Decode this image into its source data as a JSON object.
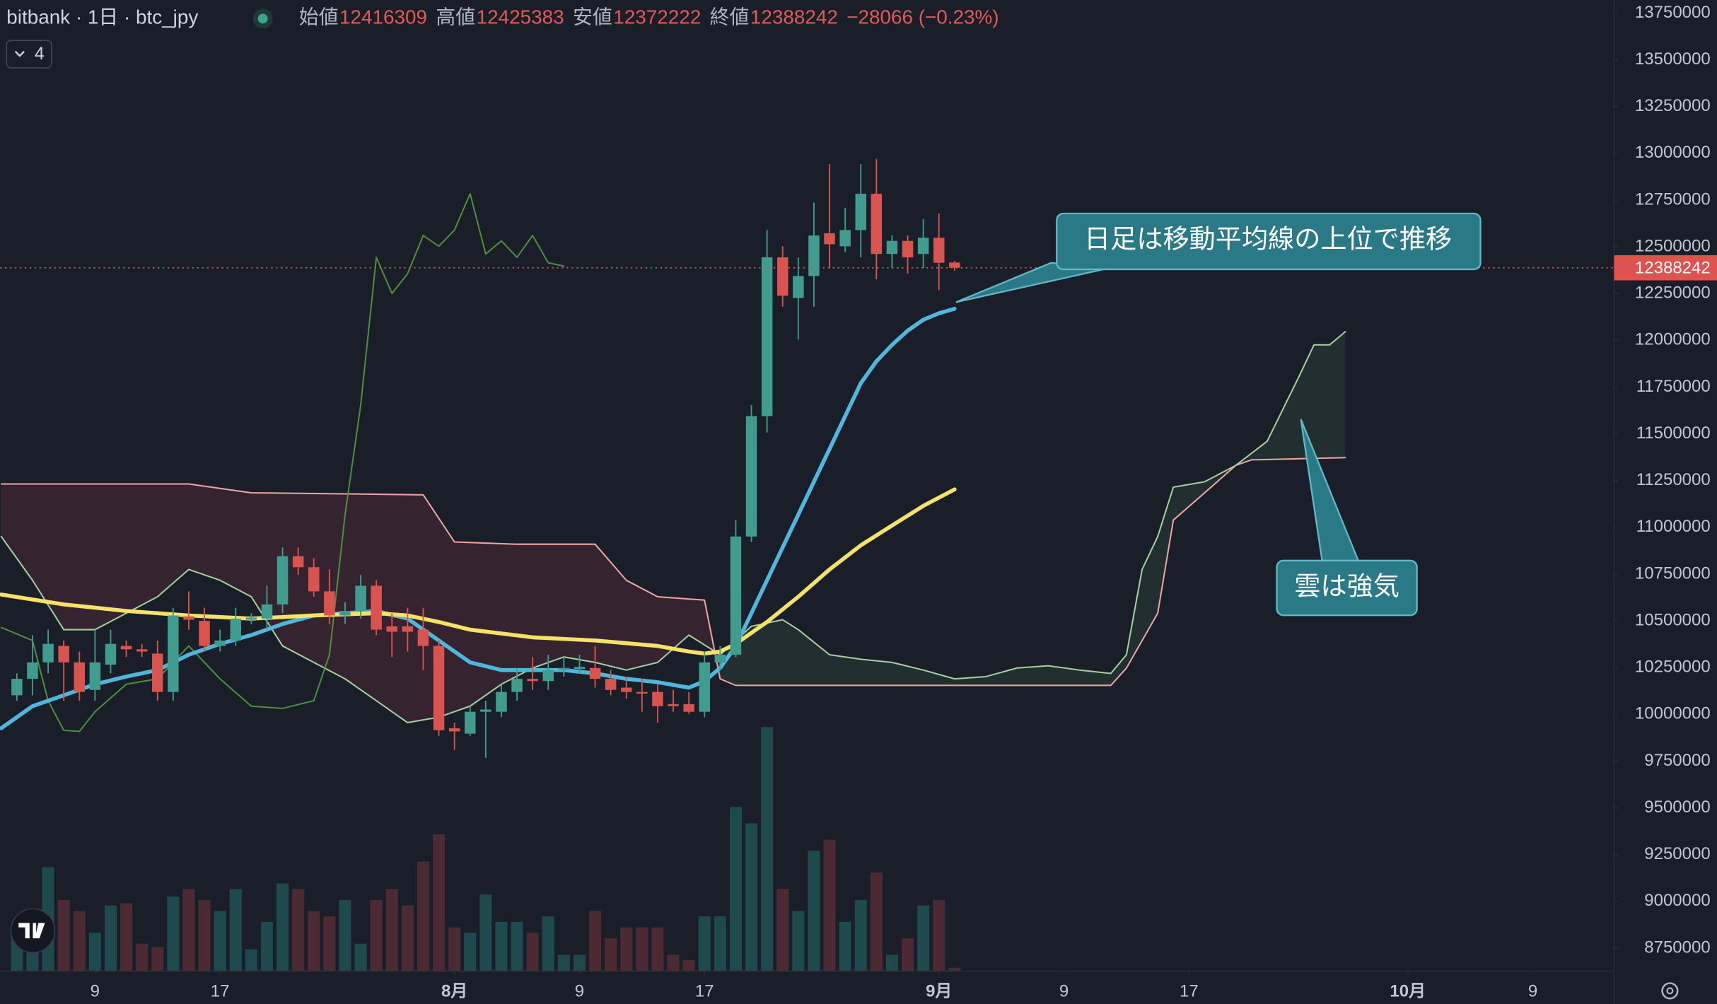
{
  "chart_data": {
    "type": "candlestick",
    "legend": {
      "symbol": "bitbank · 1日 · btc_jpy",
      "open_label": "始値",
      "high_label": "高値",
      "low_label": "安値",
      "close_label": "終値",
      "change": "−28066 (−0.23%)",
      "indicators": "4"
    },
    "xlim": [
      -29.08,
      74.2
    ],
    "ylim": [
      8627000,
      13820000
    ],
    "yticks": [
      8750000,
      9000000,
      9250000,
      9500000,
      9750000,
      10000000,
      10250000,
      10500000,
      10750000,
      11000000,
      11250000,
      11500000,
      11750000,
      12000000,
      12250000,
      12500000,
      12750000,
      13000000,
      13250000,
      13500000,
      13750000
    ],
    "xticks": [
      {
        "value": -23,
        "label": "9"
      },
      {
        "value": -15,
        "label": "17"
      },
      {
        "value": 0,
        "label": "8月"
      },
      {
        "value": 8,
        "label": "9"
      },
      {
        "value": 16,
        "label": "17"
      },
      {
        "value": 31,
        "label": "9月"
      },
      {
        "value": 39,
        "label": "9"
      },
      {
        "value": 47,
        "label": "17"
      },
      {
        "value": 61,
        "label": "10月"
      },
      {
        "value": 69,
        "label": "9"
      }
    ],
    "up_color": "#3f9c8e",
    "down_color": "#d9544f",
    "x": [
      -28,
      -27,
      -26,
      -25,
      -24,
      -23,
      -22,
      -21,
      -20,
      -19,
      -18,
      -17,
      -16,
      -15,
      -14,
      -13,
      -12,
      -11,
      -10,
      -9,
      -8,
      -7,
      -6,
      -5,
      -4,
      -3,
      -2,
      -1,
      0,
      1,
      2,
      3,
      4,
      5,
      6,
      7,
      8,
      9,
      10,
      11,
      12,
      13,
      14,
      15,
      16,
      17,
      18,
      19,
      20,
      21,
      22,
      23,
      24,
      25,
      26,
      27,
      28,
      29,
      30,
      31,
      32
    ],
    "open": [
      10102000,
      10190000,
      10278000,
      10366000,
      10278000,
      10131000,
      10266000,
      10366000,
      10348000,
      10325000,
      10120000,
      10524000,
      10500000,
      10366000,
      10395000,
      10506000,
      10512000,
      10588000,
      10846000,
      10787000,
      10658000,
      10529000,
      10553000,
      10688000,
      10471000,
      10471000,
      10453000,
      10366000,
      9926000,
      9897000,
      10014000,
      10014000,
      10120000,
      10190000,
      10178000,
      10237000,
      10243000,
      10248000,
      10190000,
      10143000,
      10120000,
      10120000,
      10055000,
      10055000,
      10014000,
      10278000,
      10319000,
      10951000,
      11595000,
      12444000,
      12227000,
      12344000,
      12573000,
      12503000,
      12590000,
      12784000,
      12462000,
      12532000,
      12462000,
      12549000,
      12416309
    ],
    "high": [
      10219000,
      10424000,
      10453000,
      10395000,
      10336000,
      10453000,
      10453000,
      10395000,
      10377000,
      10395000,
      10570000,
      10658000,
      10570000,
      10453000,
      10570000,
      10541000,
      10688000,
      10893000,
      10893000,
      10834000,
      10775000,
      10600000,
      10746000,
      10717000,
      10541000,
      10570000,
      10570000,
      10395000,
      9956000,
      10044000,
      10073000,
      10161000,
      10248000,
      10307000,
      10319000,
      10307000,
      10319000,
      10366000,
      10237000,
      10202000,
      10190000,
      10161000,
      10131000,
      10120000,
      10336000,
      10366000,
      11039000,
      11654000,
      12590000,
      12503000,
      12444000,
      12737000,
      12942000,
      12708000,
      12942000,
      12971000,
      12561000,
      12561000,
      12649000,
      12678000,
      12425383
    ],
    "low": [
      10073000,
      10102000,
      10219000,
      10073000,
      10073000,
      10073000,
      10219000,
      10307000,
      10307000,
      10073000,
      10073000,
      10453000,
      10336000,
      10336000,
      10366000,
      10483000,
      10453000,
      10541000,
      10746000,
      10629000,
      10483000,
      10483000,
      10512000,
      10424000,
      10307000,
      10336000,
      10237000,
      9885000,
      9809000,
      9885000,
      9768000,
      9985000,
      10073000,
      10131000,
      10131000,
      10202000,
      10219000,
      10143000,
      10102000,
      10085000,
      10014000,
      9956000,
      10014000,
      10003000,
      9985000,
      10237000,
      10307000,
      10922000,
      11507000,
      12181000,
      12005000,
      12181000,
      12386000,
      12473000,
      12444000,
      12327000,
      12386000,
      12356000,
      12386000,
      12268000,
      12372222
    ],
    "close": [
      10190000,
      10278000,
      10377000,
      10278000,
      10120000,
      10278000,
      10377000,
      10348000,
      10336000,
      10120000,
      10529000,
      10506000,
      10366000,
      10395000,
      10512000,
      10518000,
      10588000,
      10846000,
      10787000,
      10658000,
      10529000,
      10553000,
      10688000,
      10453000,
      10442000,
      10442000,
      10366000,
      9915000,
      9909000,
      10014000,
      10026000,
      10120000,
      10190000,
      10178000,
      10237000,
      10248000,
      10254000,
      10190000,
      10131000,
      10120000,
      10114000,
      10044000,
      10044000,
      10014000,
      10278000,
      10319000,
      10951000,
      11595000,
      12444000,
      12239000,
      12344000,
      12561000,
      12514000,
      12590000,
      12784000,
      12462000,
      12532000,
      12444000,
      12549000,
      12415000,
      12388242
    ],
    "volume": [
      35,
      38,
      95,
      65,
      55,
      35,
      60,
      62,
      25,
      22,
      68,
      75,
      65,
      55,
      75,
      20,
      45,
      80,
      75,
      55,
      50,
      65,
      25,
      65,
      75,
      60,
      100,
      125,
      40,
      35,
      70,
      45,
      45,
      35,
      50,
      15,
      15,
      55,
      30,
      40,
      40,
      40,
      15,
      10,
      50,
      50,
      150,
      135,
      223,
      75,
      55,
      110,
      120,
      45,
      65,
      90,
      15,
      30,
      60,
      65,
      3
    ],
    "moving_averages": [
      {
        "color": "#4fb6dc",
        "x": [
          -29,
          -27,
          -25,
          -23,
          -21,
          -19,
          -17,
          -15,
          -13,
          -11,
          -9,
          -7,
          -5,
          -3,
          -1,
          1,
          3,
          5,
          7,
          9,
          11,
          13,
          15,
          16,
          17,
          18,
          19,
          20,
          21,
          22,
          23,
          24,
          25,
          26,
          27,
          28,
          29,
          30,
          31,
          32
        ],
        "values": [
          9926000,
          10044000,
          10102000,
          10161000,
          10202000,
          10237000,
          10319000,
          10377000,
          10424000,
          10483000,
          10529000,
          10541000,
          10553000,
          10512000,
          10395000,
          10278000,
          10237000,
          10237000,
          10237000,
          10219000,
          10190000,
          10172000,
          10143000,
          10178000,
          10248000,
          10366000,
          10541000,
          10717000,
          10893000,
          11068000,
          11244000,
          11419000,
          11595000,
          11771000,
          11888000,
          11976000,
          12052000,
          12110000,
          12145000,
          12169000
        ]
      },
      {
        "color": "#f6e266",
        "x": [
          -29,
          -25,
          -21,
          -17,
          -13,
          -9,
          -5,
          -3,
          -1,
          1,
          5,
          9,
          13,
          15,
          16,
          17,
          18,
          19,
          20,
          22,
          24,
          26,
          28,
          30,
          32
        ],
        "values": [
          10641000,
          10588000,
          10553000,
          10529000,
          10512000,
          10529000,
          10541000,
          10529000,
          10494000,
          10453000,
          10412000,
          10395000,
          10366000,
          10336000,
          10325000,
          10336000,
          10377000,
          10436000,
          10494000,
          10629000,
          10775000,
          10904000,
          11010000,
          11115000,
          11203000
        ]
      }
    ],
    "lagging_span": {
      "color": "#4e8f3e",
      "x": [
        -29,
        -27,
        -26,
        -25,
        -24,
        -23,
        -21,
        -19,
        -17,
        -15,
        -13,
        -11,
        -9,
        -8,
        -7,
        -6,
        -5,
        -4,
        -3,
        -2,
        -1,
        0,
        1,
        2,
        3,
        4,
        5,
        6,
        7
      ],
      "values": [
        10465000,
        10395000,
        10073000,
        9915000,
        9909000,
        10014000,
        10161000,
        10190000,
        10366000,
        10190000,
        10044000,
        10032000,
        10073000,
        10319000,
        11068000,
        11654000,
        12444000,
        12251000,
        12356000,
        12561000,
        12503000,
        12590000,
        12784000,
        12462000,
        12532000,
        12444000,
        12561000,
        12415000,
        12397000
      ]
    },
    "span_a": {
      "color": "#a3d2a0",
      "x": [
        -29,
        -27,
        -25,
        -23,
        -21,
        -19,
        -17,
        -15,
        -13,
        -11,
        -9,
        -7,
        -5,
        -3,
        -1,
        1,
        3,
        5,
        7,
        9,
        11,
        13,
        15,
        17,
        19,
        21,
        22,
        24,
        26,
        28,
        30,
        32,
        34,
        36,
        38,
        40,
        42,
        43,
        44,
        45,
        46,
        48,
        50,
        52,
        54,
        55,
        56,
        57
      ],
      "values": [
        10951000,
        10717000,
        10453000,
        10453000,
        10541000,
        10629000,
        10775000,
        10717000,
        10629000,
        10366000,
        10278000,
        10190000,
        10073000,
        9956000,
        9985000,
        10044000,
        10161000,
        10248000,
        10307000,
        10278000,
        10237000,
        10278000,
        10424000,
        10319000,
        10471000,
        10506000,
        10453000,
        10319000,
        10295000,
        10278000,
        10237000,
        10190000,
        10202000,
        10248000,
        10260000,
        10237000,
        10219000,
        10319000,
        10775000,
        10951000,
        11215000,
        11244000,
        11332000,
        11460000,
        11800000,
        11976000,
        11976000,
        12046000
      ]
    },
    "span_b": {
      "color": "#eea6a6",
      "x": [
        -29,
        -17,
        -13,
        -2,
        0,
        4,
        9,
        11,
        13,
        16,
        17,
        18,
        42,
        43,
        45,
        46,
        48,
        50,
        51,
        57
      ],
      "values": [
        11232000,
        11232000,
        11185000,
        11174000,
        10922000,
        10910000,
        10910000,
        10717000,
        10629000,
        10611000,
        10190000,
        10155000,
        10155000,
        10248000,
        10541000,
        11039000,
        11185000,
        11332000,
        11361000,
        11373000
      ]
    },
    "annotations": [
      "日足は移動平均線の上位で推移",
      "雲は強気"
    ]
  }
}
